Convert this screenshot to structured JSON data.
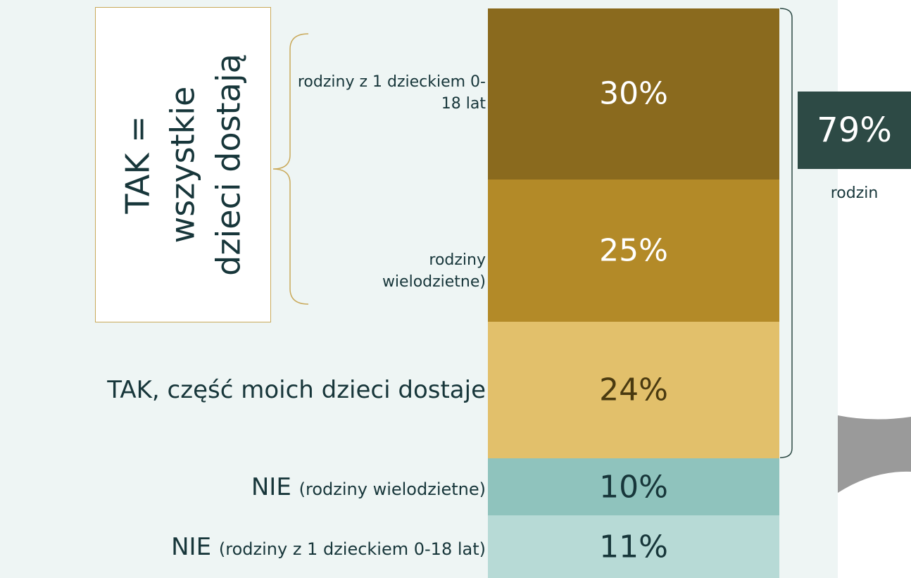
{
  "chart_data": {
    "type": "stacked_bar",
    "series": [
      {
        "name": "rodziny z 1 dzieckiem 0-18 lat",
        "color": "#8a6a1e",
        "text_color": "#ffffff",
        "values": [
          30
        ],
        "value_labels": [
          "30%"
        ]
      },
      {
        "name": "rodziny wielodzietne)",
        "color": "#b38a28",
        "text_color": "#ffffff",
        "values": [
          25
        ],
        "value_labels": [
          "25%"
        ]
      },
      {
        "name": "TAK, część moich dzieci dostaje",
        "color": "#e2c06b",
        "text_color": "#4a3a10",
        "values": [
          24
        ],
        "value_labels": [
          "24%"
        ]
      },
      {
        "name": "NIE",
        "detail": "(rodziny wielodzietne)",
        "color": "#8fc3bd",
        "text_color": "#17363a",
        "values": [
          10
        ],
        "value_labels": [
          "10%"
        ]
      },
      {
        "name": "NIE",
        "detail": "(rodziny z 1 dzieckiem 0-18 lat)",
        "color": "#b7dad6",
        "text_color": "#17363a",
        "values": [
          11
        ],
        "value_labels": [
          "11%"
        ]
      }
    ],
    "group_label": [
      "TAK =",
      "wszystkie",
      "dzieci dostają"
    ],
    "total": 79,
    "total_label": "79%",
    "total_caption": "rodzin"
  }
}
